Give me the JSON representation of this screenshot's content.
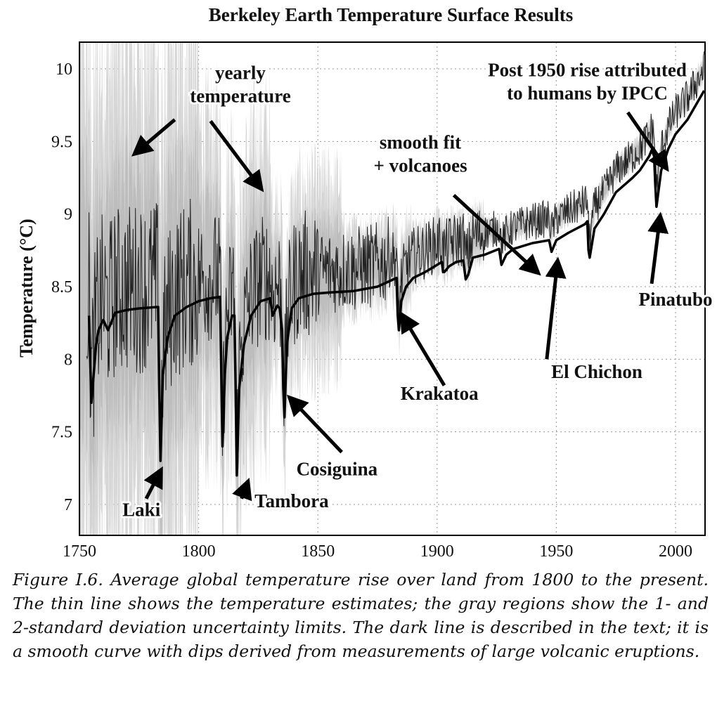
{
  "chart_data": {
    "type": "line",
    "title": "Berkeley Earth Temperature Surface Results",
    "xlabel": "",
    "ylabel": "Temperature (°C)",
    "xlim": [
      1750,
      2012
    ],
    "ylim": [
      6.8,
      10.2
    ],
    "xticks": [
      1750,
      1800,
      1850,
      1900,
      1950,
      2000
    ],
    "yticks": [
      7,
      7.5,
      8,
      8.5,
      9,
      9.5,
      10
    ],
    "xtick_labels": [
      "1750",
      "1800",
      "1850",
      "1900",
      "1950",
      "2000"
    ],
    "ytick_labels": [
      "7",
      "7.5",
      "8",
      "8.5",
      "9",
      "9.5",
      "10"
    ],
    "grid": true,
    "series": [
      {
        "key": "fit",
        "color": "#000000",
        "x": [
          1754,
          1755,
          1757,
          1758,
          1760,
          1762,
          1765,
          1770,
          1775,
          1783,
          1783.5,
          1784,
          1785,
          1787,
          1790,
          1795,
          1800,
          1805,
          1809,
          1809.5,
          1810,
          1811,
          1812,
          1814,
          1815,
          1815.5,
          1816,
          1817,
          1819,
          1822,
          1826,
          1830,
          1831,
          1833,
          1834,
          1835,
          1835.5,
          1836,
          1837,
          1839,
          1842,
          1848,
          1855,
          1865,
          1875,
          1883,
          1883.5,
          1884,
          1885,
          1887,
          1890,
          1895,
          1900,
          1902,
          1902.5,
          1903,
          1905,
          1908,
          1911,
          1912,
          1913,
          1915,
          1920,
          1926,
          1927,
          1929,
          1932,
          1940,
          1947,
          1948,
          1950,
          1955,
          1962,
          1963,
          1963.5,
          1964,
          1966,
          1970,
          1975,
          1982,
          1985,
          1989,
          1990,
          1991,
          1991.5,
          1992,
          1994,
          1997,
          2000,
          2005,
          2012
        ],
        "y": [
          8.3,
          7.7,
          8.1,
          8.2,
          8.27,
          8.2,
          8.32,
          8.34,
          8.35,
          8.36,
          7.8,
          7.3,
          7.9,
          8.15,
          8.3,
          8.36,
          8.4,
          8.42,
          8.43,
          7.9,
          7.4,
          7.9,
          8.15,
          8.3,
          8.3,
          7.8,
          7.2,
          7.8,
          8.1,
          8.3,
          8.4,
          8.42,
          8.3,
          8.37,
          8.35,
          8.2,
          7.8,
          7.6,
          8.1,
          8.35,
          8.42,
          8.45,
          8.46,
          8.47,
          8.5,
          8.56,
          8.3,
          8.2,
          8.4,
          8.5,
          8.56,
          8.6,
          8.65,
          8.67,
          8.6,
          8.6,
          8.64,
          8.67,
          8.68,
          8.55,
          8.58,
          8.7,
          8.72,
          8.76,
          8.65,
          8.72,
          8.76,
          8.8,
          8.82,
          8.74,
          8.82,
          8.87,
          8.93,
          8.95,
          8.75,
          8.7,
          8.9,
          9.0,
          9.15,
          9.25,
          9.3,
          9.4,
          9.44,
          9.4,
          9.2,
          9.05,
          9.3,
          9.45,
          9.55,
          9.65,
          9.85
        ]
      }
    ],
    "annotations": [
      {
        "text": "yearly",
        "x": 1817.5,
        "y": 9.93
      },
      {
        "text": "temperature",
        "x": 1817.5,
        "y": 9.77
      },
      {
        "text": "Post 1950 rise attributed",
        "x": 1963,
        "y": 9.95
      },
      {
        "text": "to humans by IPCC",
        "x": 1963,
        "y": 9.79
      },
      {
        "text": "smooth fit",
        "x": 1893,
        "y": 9.45
      },
      {
        "text": "+ volcanoes",
        "x": 1893,
        "y": 9.29
      },
      {
        "text": "Krakatoa",
        "x": 1901,
        "y": 7.72
      },
      {
        "text": "El Chichon",
        "x": 1967,
        "y": 7.87
      },
      {
        "text": "Pinatubo",
        "x": 2000,
        "y": 8.37
      },
      {
        "text": "Cosiguina",
        "x": 1858,
        "y": 7.2
      },
      {
        "text": "Tambora",
        "x": 1839,
        "y": 6.98
      },
      {
        "text": "Laki",
        "x": 1776,
        "y": 6.92
      }
    ],
    "arrows": [
      {
        "from": [
          1790,
          9.65
        ],
        "to": [
          1773.5,
          9.42
        ]
      },
      {
        "from": [
          1805,
          9.64
        ],
        "to": [
          1826,
          9.18
        ]
      },
      {
        "from": [
          1980,
          9.7
        ],
        "to": [
          1996,
          9.32
        ]
      },
      {
        "from": [
          1907,
          9.13
        ],
        "to": [
          1942,
          8.6
        ]
      },
      {
        "from": [
          1903,
          7.82
        ],
        "to": [
          1885.5,
          8.3
        ]
      },
      {
        "from": [
          1946,
          8.0
        ],
        "to": [
          1950.5,
          8.67
        ]
      },
      {
        "from": [
          1990,
          8.52
        ],
        "to": [
          1993.5,
          8.98
        ]
      },
      {
        "from": [
          1860,
          7.36
        ],
        "to": [
          1838.5,
          7.73
        ]
      },
      {
        "from": [
          1818,
          7.04
        ],
        "to": [
          1820.5,
          7.15
        ]
      },
      {
        "from": [
          1778,
          7.04
        ],
        "to": [
          1784,
          7.23
        ]
      }
    ]
  },
  "caption": "Figure I.6. Average global temperature rise over land from 1800 to the present. The thin line shows the temperature estimates; the gray regions show the 1- and 2-standard deviation uncertainty limits. The dark line is described in the text; it is a smooth curve with dips derived from measurements of large volcanic eruptions."
}
